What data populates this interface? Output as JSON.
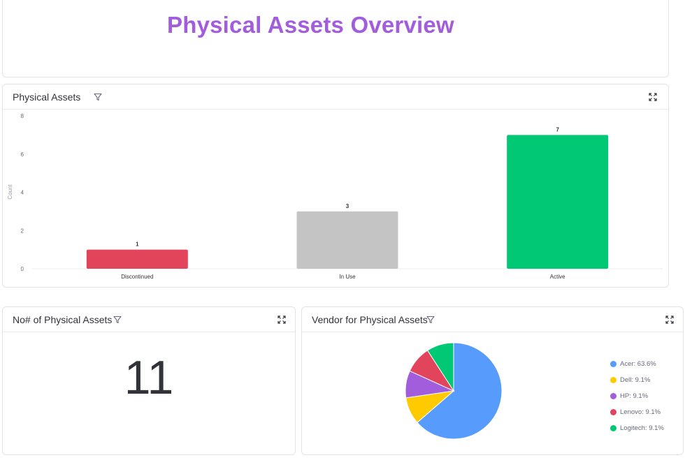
{
  "page": {
    "title": "Physical Assets Overview"
  },
  "bar_widget": {
    "title": "Physical Assets",
    "ylabel": "Count"
  },
  "count_widget": {
    "title": "No# of Physical Assets",
    "value": "11"
  },
  "vendor_widget": {
    "title": "Vendor for Physical Assets",
    "legend": [
      {
        "label": "Acer: 63.6%",
        "color": "#579bfc"
      },
      {
        "label": "Dell: 9.1%",
        "color": "#ffcb00"
      },
      {
        "label": "HP: 9.1%",
        "color": "#a25ddc"
      },
      {
        "label": "Lenovo: 9.1%",
        "color": "#e2445c"
      },
      {
        "label": "Logitech: 9.1%",
        "color": "#00c875"
      }
    ]
  },
  "icons": {
    "filter": "filter-icon",
    "expand": "expand-icon"
  },
  "chart_data": [
    {
      "type": "bar",
      "categories": [
        "Discontinued",
        "In Use",
        "Active"
      ],
      "values": [
        1,
        3,
        7
      ],
      "colors": [
        "#e2445c",
        "#c4c4c4",
        "#00c875"
      ],
      "xlabel": "",
      "ylabel": "Count",
      "yticks": [
        "0",
        "2",
        "4",
        "6",
        "8"
      ],
      "ylim": [
        0,
        8
      ],
      "data_labels": [
        "1",
        "3",
        "7"
      ]
    },
    {
      "type": "pie",
      "labels": [
        "Acer",
        "Dell",
        "HP",
        "Lenovo",
        "Logitech"
      ],
      "values": [
        63.6,
        9.1,
        9.1,
        9.1,
        9.1
      ],
      "colors": [
        "#579bfc",
        "#ffcb00",
        "#a25ddc",
        "#e2445c",
        "#00c875"
      ],
      "legend_position": "right"
    }
  ]
}
